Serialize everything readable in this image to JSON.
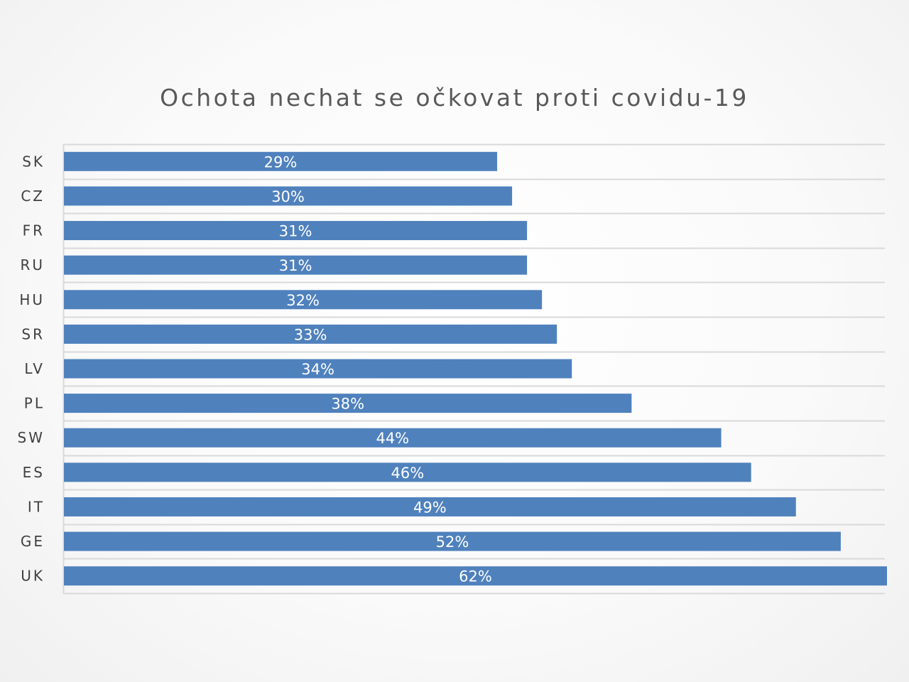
{
  "chart_data": {
    "type": "bar",
    "orientation": "horizontal",
    "title": "Ochota nechat se očkovat proti covidu-19",
    "categories": [
      "SK",
      "CZ",
      "FR",
      "RU",
      "HU",
      "SR",
      "LV",
      "PL",
      "SW",
      "ES",
      "IT",
      "GE",
      "UK"
    ],
    "values": [
      29,
      30,
      31,
      31,
      32,
      33,
      34,
      38,
      44,
      46,
      49,
      52,
      62
    ],
    "value_labels": [
      "29%",
      "30%",
      "31%",
      "31%",
      "32%",
      "33%",
      "34%",
      "38%",
      "44%",
      "46%",
      "49%",
      "52%",
      "62%"
    ],
    "unit": "%",
    "xlabel": "",
    "ylabel": "",
    "xlim": [
      0,
      55
    ],
    "grid": true,
    "legend": "none",
    "bar_color": "#4f81bd",
    "label_color": "#ffffff"
  }
}
